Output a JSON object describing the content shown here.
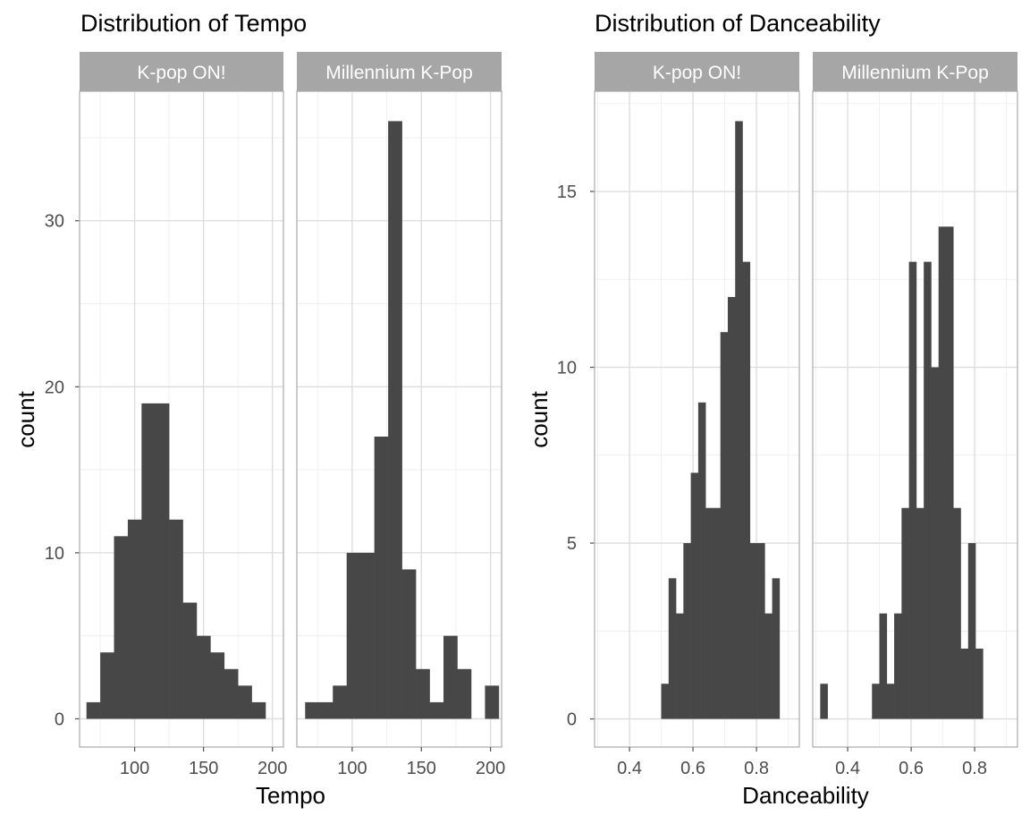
{
  "chart_data": [
    {
      "type": "bar",
      "title": "Distribution of Tempo",
      "xlabel": "Tempo",
      "ylabel": "count",
      "xlim": [
        60,
        208
      ],
      "ylim": [
        -1.7,
        37.8
      ],
      "xticks": [
        100,
        150,
        200
      ],
      "xtick_labels": [
        "100",
        "150",
        "200"
      ],
      "yticks": [
        0,
        10,
        20,
        30
      ],
      "ytick_labels": [
        "0",
        "10",
        "20",
        "30"
      ],
      "grid": true,
      "facets": [
        {
          "label": "K-pop ON!",
          "bin_width": 10,
          "bins_start": [
            65,
            75,
            85,
            95,
            105,
            115,
            125,
            135,
            145,
            155,
            165,
            175,
            185
          ],
          "values": [
            1,
            4,
            11,
            12,
            19,
            19,
            12,
            7,
            5,
            4,
            3,
            2,
            1
          ]
        },
        {
          "label": "Millennium K-Pop",
          "bin_width": 10,
          "bins_start": [
            66,
            76,
            86,
            96,
            106,
            116,
            126,
            136,
            146,
            156,
            166,
            176,
            186,
            196
          ],
          "values": [
            1,
            1,
            2,
            10,
            10,
            17,
            36,
            9,
            3,
            1,
            5,
            3,
            0,
            2
          ]
        }
      ]
    },
    {
      "type": "bar",
      "title": "Distribution of Danceability",
      "xlabel": "Danceability",
      "ylabel": "count",
      "xlim": [
        0.29,
        0.935
      ],
      "ylim": [
        -0.8,
        17.85
      ],
      "xticks": [
        0.4,
        0.6,
        0.8
      ],
      "xtick_labels": [
        "0.4",
        "0.6",
        "0.8"
      ],
      "yticks": [
        0,
        5,
        10,
        15
      ],
      "ytick_labels": [
        "0",
        "5",
        "10",
        "15"
      ],
      "grid": true,
      "facets": [
        {
          "label": "K-pop ON!",
          "bin_width": 0.0233,
          "bins_start": [
            0.4999,
            0.5232,
            0.5465,
            0.5698,
            0.5931,
            0.6164,
            0.6397,
            0.663,
            0.6863,
            0.7096,
            0.7329,
            0.7562,
            0.7795,
            0.8028,
            0.8261,
            0.8494,
            0.8727,
            0.896
          ],
          "values": [
            1,
            4,
            3,
            5,
            7,
            9,
            6,
            6,
            11,
            12,
            17,
            13,
            5,
            5,
            3,
            4,
            0,
            0
          ]
        },
        {
          "label": "Millennium K-Pop",
          "bin_width": 0.0233,
          "bins_start": [
            0.3135,
            0.3368,
            0.3601,
            0.3834,
            0.4067,
            0.43,
            0.4533,
            0.4766,
            0.4999,
            0.5232,
            0.5465,
            0.5698,
            0.5931,
            0.6164,
            0.6397,
            0.663,
            0.6863,
            0.7096,
            0.7329,
            0.7562,
            0.7795,
            0.8028,
            0.8261,
            0.8494,
            0.8727,
            0.896
          ],
          "values": [
            1,
            0,
            0,
            0,
            0,
            0,
            0,
            1,
            3,
            1,
            3,
            6,
            13,
            6,
            13,
            10,
            14,
            14,
            6,
            2,
            5,
            2,
            0,
            0,
            0,
            0
          ]
        }
      ]
    }
  ]
}
